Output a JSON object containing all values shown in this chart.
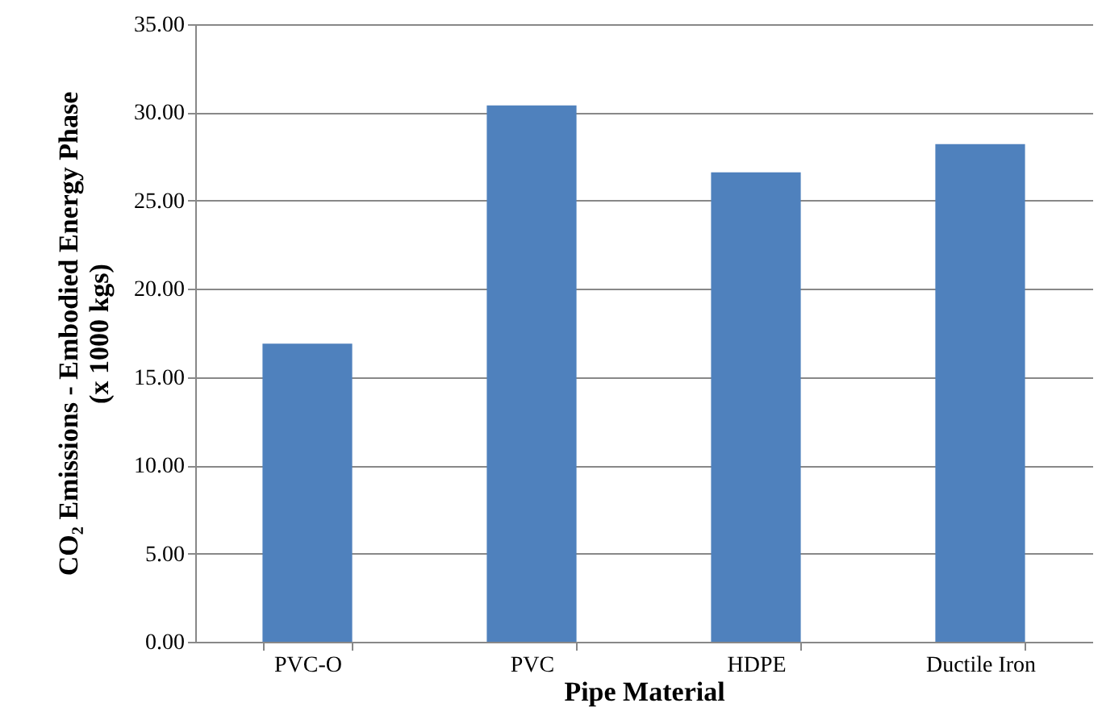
{
  "chart_data": {
    "type": "bar",
    "xlabel": "Pipe Material",
    "ylabel": "CO₂ Emissions - Embodied Energy Phase\n(x 1000 kgs)",
    "categories": [
      "PVC-O",
      "PVC",
      "HDPE",
      "Ductile Iron"
    ],
    "values": [
      16.9,
      30.4,
      26.6,
      28.2
    ],
    "color": "#4f81bd",
    "ylim": [
      0,
      35
    ],
    "yticks": [
      {
        "value": 0,
        "label": "0.00"
      },
      {
        "value": 5,
        "label": "5.00"
      },
      {
        "value": 10,
        "label": "10.00"
      },
      {
        "value": 15,
        "label": "15.00"
      },
      {
        "value": 20,
        "label": "20.00"
      },
      {
        "value": 25,
        "label": "25.00"
      },
      {
        "value": 30,
        "label": "30.00"
      },
      {
        "value": 35,
        "label": "35.00"
      }
    ],
    "grid": "y"
  }
}
